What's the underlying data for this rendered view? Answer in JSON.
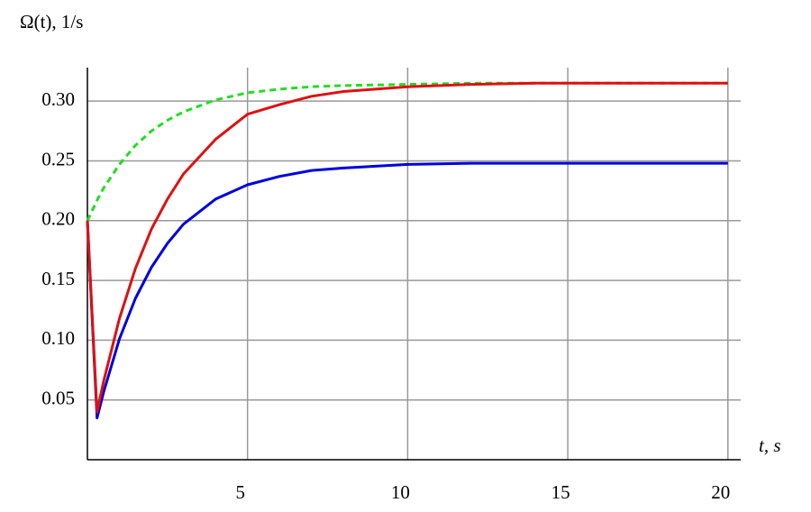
{
  "chart_data": {
    "type": "line",
    "ylabel": "Ω(t), 1/s",
    "xlabel": "t, s",
    "x": [
      0,
      0.3,
      0.5,
      1,
      1.5,
      2,
      2.5,
      3,
      4,
      5,
      6,
      7,
      8,
      10,
      12,
      14,
      16,
      18,
      20
    ],
    "series": [
      {
        "color": "#22dd22",
        "dash": true,
        "values": [
          0.2,
          0.217,
          0.227,
          0.247,
          0.263,
          0.275,
          0.284,
          0.291,
          0.301,
          0.307,
          0.31,
          0.312,
          0.313,
          0.314,
          0.315,
          0.315,
          0.315,
          0.315,
          0.315
        ]
      },
      {
        "color": "#0000dd",
        "dash": false,
        "values": [
          0.2,
          0.035,
          0.056,
          0.101,
          0.135,
          0.161,
          0.181,
          0.197,
          0.218,
          0.23,
          0.237,
          0.242,
          0.244,
          0.247,
          0.248,
          0.248,
          0.248,
          0.248,
          0.248
        ]
      },
      {
        "color": "#dd1111",
        "dash": false,
        "values": [
          0.2,
          0.04,
          0.065,
          0.118,
          0.16,
          0.193,
          0.218,
          0.239,
          0.268,
          0.289,
          0.297,
          0.304,
          0.308,
          0.312,
          0.314,
          0.315,
          0.315,
          0.315,
          0.315
        ]
      }
    ],
    "xlim": [
      0,
      20.4
    ],
    "ylim": [
      0,
      0.328
    ],
    "xticks": [
      5,
      10,
      15,
      20
    ],
    "yticks": [
      0.05,
      {
        "value": 0.1,
        "label": "0.10"
      },
      0.15,
      {
        "value": 0.2,
        "label": "0.20"
      },
      0.25,
      {
        "value": 0.3,
        "label": "0.30"
      }
    ],
    "grid": true
  }
}
